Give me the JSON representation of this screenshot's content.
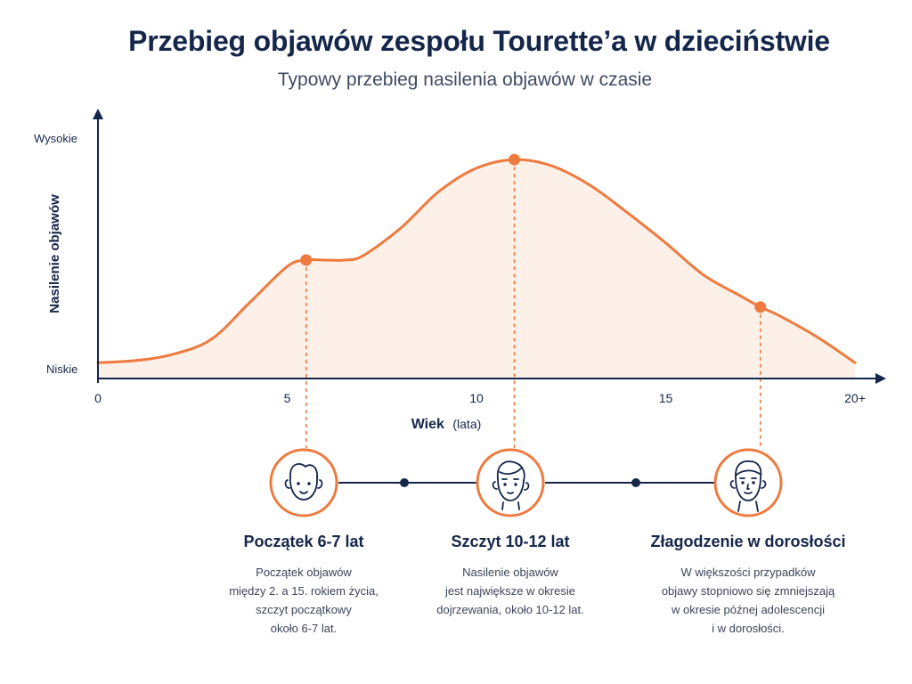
{
  "title": "Przebieg objawów zespołu Tourette’a w dzieciństwie",
  "subtitle": "Typowy przebieg nasilenia objawów w czasie",
  "colors": {
    "accent": "#ee7a3e",
    "area_fill": "#fdf0e8",
    "navy": "#14264a"
  },
  "chart_data": {
    "type": "area",
    "title": "Przebieg objawów zespołu Tourette’a w dzieciństwie",
    "subtitle": "Typowy przebieg nasilenia objawów w czasie",
    "xlabel": "Wiek",
    "xlabel_unit": "(lata)",
    "ylabel": "Nasilenie objawów",
    "y_tick_labels": {
      "high": "Wysokie",
      "low": "Niskie"
    },
    "x_ticks": [
      {
        "value": 0,
        "label": "0"
      },
      {
        "value": 5,
        "label": "5"
      },
      {
        "value": 10,
        "label": "10"
      },
      {
        "value": 15,
        "label": "15"
      },
      {
        "value": 20,
        "label": "20+"
      }
    ],
    "xlim": [
      0,
      20.5
    ],
    "ylim": [
      0,
      1
    ],
    "grid": false,
    "x": [
      0,
      1,
      2,
      3,
      4,
      5,
      5.5,
      6,
      6.5,
      7,
      8,
      9,
      10,
      11,
      12,
      13,
      14,
      15,
      16,
      17,
      17.5,
      18,
      19,
      20
    ],
    "y": [
      0.02,
      0.03,
      0.06,
      0.13,
      0.3,
      0.47,
      0.5,
      0.5,
      0.5,
      0.52,
      0.65,
      0.82,
      0.93,
      0.97,
      0.94,
      0.85,
      0.72,
      0.58,
      0.43,
      0.33,
      0.28,
      0.24,
      0.14,
      0.02
    ],
    "markers": [
      {
        "x": 5.5,
        "y": 0.5
      },
      {
        "x": 11,
        "y": 0.97
      },
      {
        "x": 17.5,
        "y": 0.28
      }
    ]
  },
  "stages": [
    {
      "icon": "child-face-icon",
      "title": "Początek 6-7 lat",
      "description": "Początek objawów\nmiędzy 2. a 15. rokiem życia,\nszczyt początkowy\nokoło 6-7 lat."
    },
    {
      "icon": "teen-face-icon",
      "title": "Szczyt 10-12 lat",
      "description": "Nasilenie objawów\njest największe w okresie\ndojrzewania, około 10-12 lat."
    },
    {
      "icon": "adult-face-icon",
      "title": "Złagodzenie w dorosłości",
      "description": "W większości przypadków\nobjawy stopniowo się zmniejszają\nw okresie późnej adolescencji\ni w dorosłości."
    }
  ]
}
